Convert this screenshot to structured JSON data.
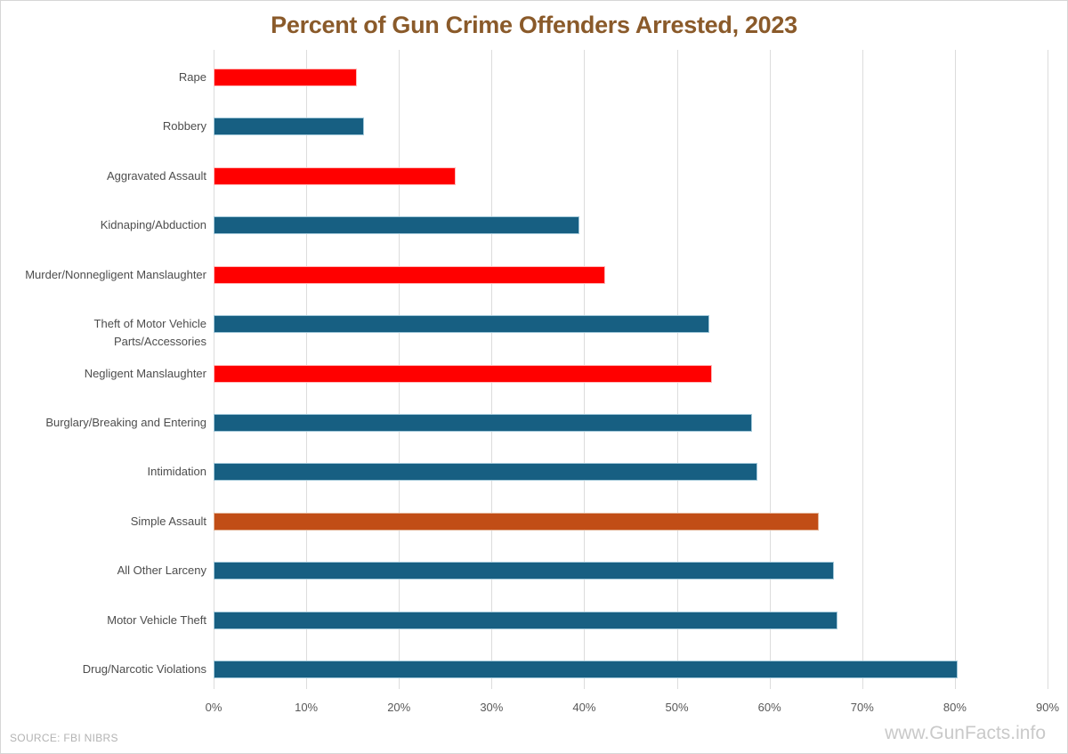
{
  "title": "Percent of Gun Crime Offenders Arrested, 2023",
  "source": "SOURCE: FBI NIBRS",
  "watermark": "www.GunFacts.info",
  "colors": {
    "title": "#8a5a2a",
    "blue": "#175f82",
    "red": "#ff0000",
    "orange": "#c14d16",
    "blue_border": "#a3c9da",
    "red_border": "#ffb9b9",
    "orange_border": "#e3b396",
    "gridline": "#dcdcdc",
    "axis_text": "#595959",
    "label_text": "#4d4d4d",
    "source_text": "#b3b3b3",
    "watermark_text": "#c9c9c9"
  },
  "chart_data": {
    "type": "bar",
    "orientation": "horizontal",
    "title": "Percent of Gun Crime Offenders Arrested, 2023",
    "categories": [
      "Rape",
      "Robbery",
      "Aggravated Assault",
      "Kidnaping/Abduction",
      "Murder/Nonnegligent Manslaughter",
      "Theft of Motor Vehicle Parts/Accessories",
      "Negligent Manslaughter",
      "Burglary/Breaking and Entering",
      "Intimidation",
      "Simple Assault",
      "All Other Larceny",
      "Motor Vehicle Theft",
      "Drug/Narcotic Violations"
    ],
    "values": [
      15.5,
      16.2,
      26.1,
      39.5,
      42.3,
      53.5,
      53.8,
      58.1,
      58.7,
      65.3,
      66.9,
      67.3,
      80.3
    ],
    "bar_colors": [
      "red",
      "blue",
      "red",
      "blue",
      "red",
      "blue",
      "red",
      "blue",
      "blue",
      "orange",
      "blue",
      "blue",
      "blue"
    ],
    "xlabel": "",
    "ylabel": "",
    "xlim": [
      0,
      90
    ],
    "x_ticks": [
      "0%",
      "10%",
      "20%",
      "30%",
      "40%",
      "50%",
      "60%",
      "70%",
      "80%",
      "90%"
    ],
    "grid": true,
    "legend": false
  }
}
